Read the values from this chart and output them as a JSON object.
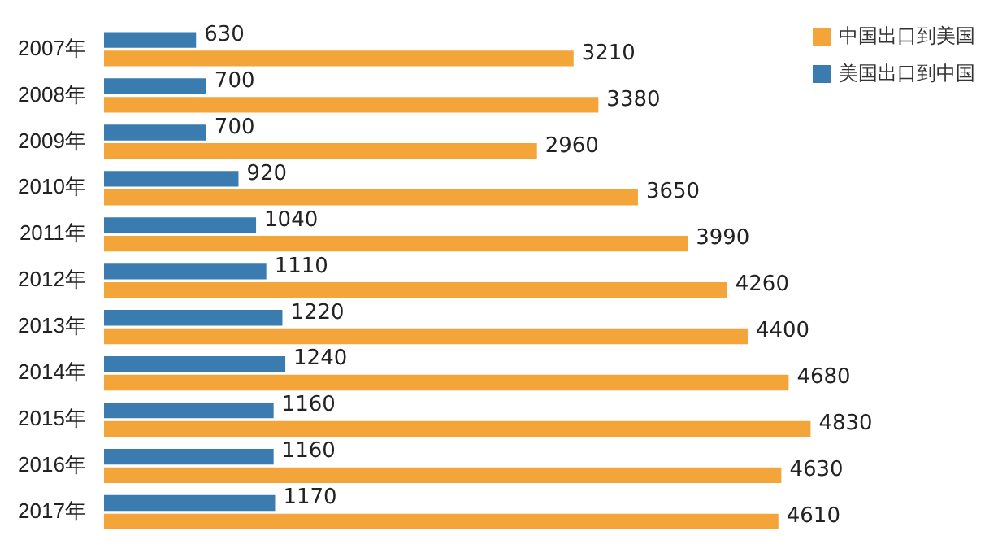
{
  "chart_data": {
    "type": "bar",
    "orientation": "horizontal",
    "categories": [
      "2007年",
      "2008年",
      "2009年",
      "2010年",
      "2011年",
      "2012年",
      "2013年",
      "2014年",
      "2015年",
      "2016年",
      "2017年"
    ],
    "series": [
      {
        "name": "美国出口到中国",
        "color": "#3a7bb0",
        "values": [
          630,
          700,
          700,
          920,
          1040,
          1110,
          1220,
          1240,
          1160,
          1160,
          1170
        ]
      },
      {
        "name": "中国出口到美国",
        "color": "#f4a53a",
        "values": [
          3210,
          3380,
          2960,
          3650,
          3990,
          4260,
          4400,
          4680,
          4830,
          4630,
          4610
        ]
      }
    ],
    "data_labels": true,
    "legend": "top right"
  }
}
